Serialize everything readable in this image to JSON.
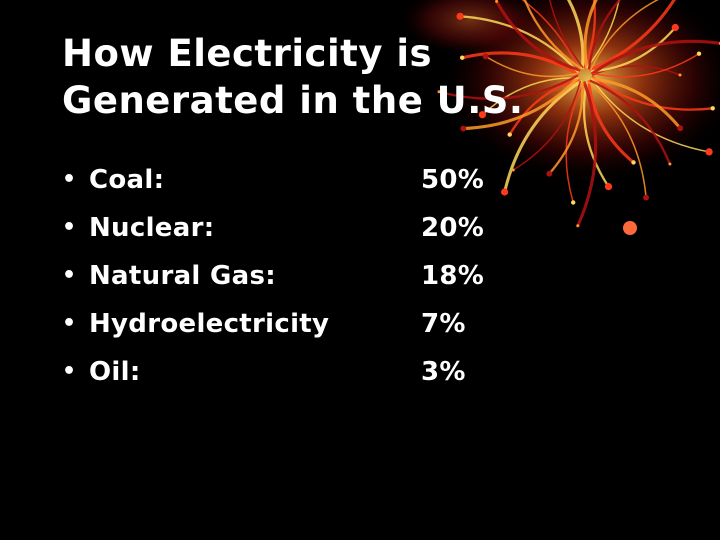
{
  "slide": {
    "title_lines": [
      "How Electricity is",
      "Generated in the U.S."
    ],
    "bullet_glyph": "•",
    "items": [
      {
        "label": "Coal:",
        "value": "50%"
      },
      {
        "label": "Nuclear:",
        "value": "20%"
      },
      {
        "label": "Natural Gas:",
        "value": "18%"
      },
      {
        "label": "Hydroelectricity",
        "value": "7%"
      },
      {
        "label": "Oil:",
        "value": "3%"
      }
    ]
  },
  "decoration": {
    "name": "fiery-firework-graphic",
    "colors": [
      "#b01010",
      "#ff3a1a",
      "#ff9a2a",
      "#ffd75a",
      "#5a0606"
    ]
  }
}
